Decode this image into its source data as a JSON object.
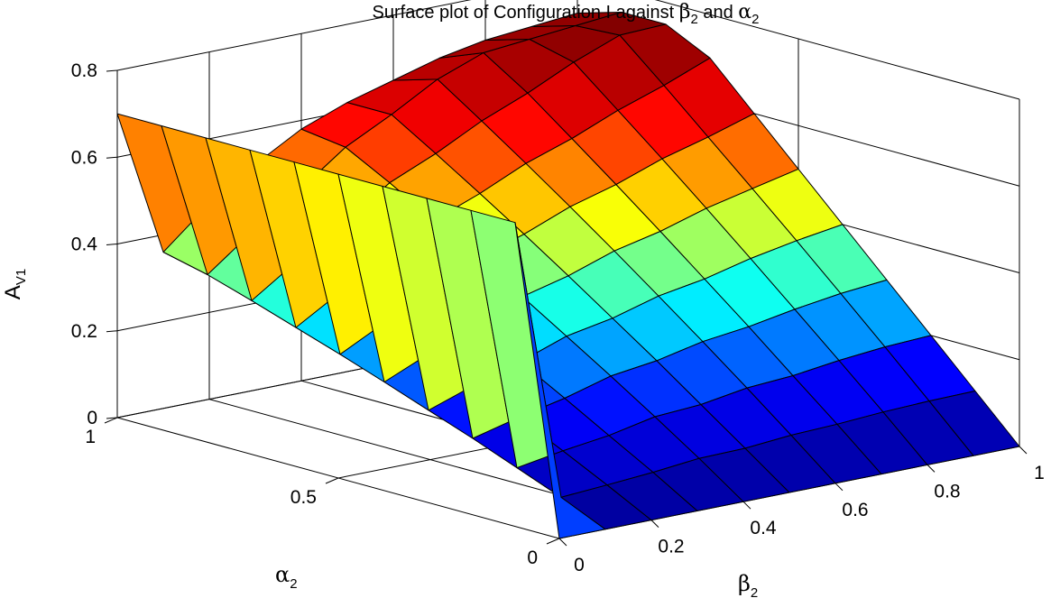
{
  "chart_data": {
    "type": "surface",
    "title": {
      "prefix": "Surface plot of Configuration I against ",
      "sym1": "β",
      "sub1": "2",
      "mid": " and ",
      "sym2": "α",
      "sub2": "2"
    },
    "xlabel": {
      "sym": "β",
      "sub": "2"
    },
    "ylabel": {
      "sym": "α",
      "sub": "2"
    },
    "zlabel": {
      "sym": "A",
      "sub": "V1"
    },
    "x_ticks": [
      "0",
      "0.2",
      "0.4",
      "0.6",
      "0.8",
      "1"
    ],
    "y_ticks": [
      "0",
      "0.5",
      "1"
    ],
    "z_ticks": [
      "0",
      "0.2",
      "0.4",
      "0.6",
      "0.8"
    ],
    "xlim": [
      0,
      1
    ],
    "ylim": [
      0,
      1
    ],
    "zlim": [
      0,
      0.8
    ],
    "x_tick_values": [
      0,
      0.2,
      0.4,
      0.6,
      0.8,
      1
    ],
    "y_tick_values": [
      0,
      0.5,
      1
    ],
    "z_tick_values": [
      0,
      0.2,
      0.4,
      0.6,
      0.8
    ],
    "grid": true,
    "colormap": "jet",
    "colormap_stops": [
      "#00008f",
      "#0000ff",
      "#00ffff",
      "#ffff00",
      "#ff0000",
      "#800000"
    ],
    "grid_x": [
      0,
      0.1,
      0.2,
      0.3,
      0.4,
      0.5,
      0.6,
      0.7,
      0.8,
      0.9,
      1
    ],
    "grid_y": [
      0,
      0.1,
      0.2,
      0.3,
      0.4,
      0.5,
      0.6,
      0.7,
      0.8,
      0.9,
      1
    ],
    "z_function": "z = b*a/(b + a*(1-b)), rows: alpha, cols: beta",
    "z": [
      [
        0,
        0,
        0,
        0,
        0,
        0,
        0,
        0,
        0,
        0,
        0
      ],
      [
        0.7,
        0.046,
        0.053,
        0.061,
        0.072,
        0.074,
        0.083,
        0.087,
        0.094,
        0.098,
        0.1
      ],
      [
        0.7,
        0.086,
        0.104,
        0.118,
        0.14,
        0.147,
        0.164,
        0.171,
        0.185,
        0.195,
        0.2
      ],
      [
        0.7,
        0.126,
        0.153,
        0.176,
        0.206,
        0.22,
        0.243,
        0.256,
        0.275,
        0.29,
        0.3
      ],
      [
        0.7,
        0.163,
        0.2,
        0.232,
        0.27,
        0.29,
        0.32,
        0.338,
        0.364,
        0.384,
        0.4
      ],
      [
        0.7,
        0.2,
        0.246,
        0.286,
        0.333,
        0.36,
        0.396,
        0.42,
        0.452,
        0.476,
        0.5
      ],
      [
        0.7,
        0.236,
        0.29,
        0.338,
        0.394,
        0.428,
        0.47,
        0.5,
        0.538,
        0.567,
        0.6
      ],
      [
        0.7,
        0.27,
        0.333,
        0.39,
        0.453,
        0.494,
        0.542,
        0.578,
        0.622,
        0.658,
        0.7
      ],
      [
        0.7,
        0.304,
        0.375,
        0.44,
        0.512,
        0.558,
        0.612,
        0.655,
        0.705,
        0.746,
        0.75
      ],
      [
        0.7,
        0.336,
        0.416,
        0.488,
        0.566,
        0.62,
        0.68,
        0.72,
        0.73,
        0.74,
        0.75
      ],
      [
        0.7,
        0.36,
        0.45,
        0.52,
        0.58,
        0.62,
        0.65,
        0.68,
        0.7,
        0.71,
        0.72
      ]
    ]
  }
}
